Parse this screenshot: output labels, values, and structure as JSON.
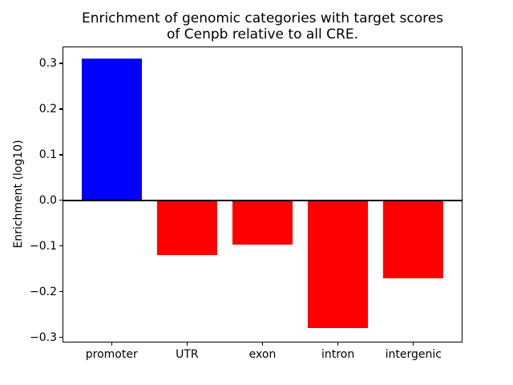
{
  "chart_data": {
    "type": "bar",
    "title": "Enrichment of genomic categories with target scores\nof Cenpb relative to all CRE.",
    "ylabel": "Enrichment (log10)",
    "xlabel": "",
    "categories": [
      "promoter",
      "UTR",
      "exon",
      "intron",
      "intergenic"
    ],
    "values": [
      0.31,
      -0.12,
      -0.097,
      -0.28,
      -0.17
    ],
    "bar_colors": [
      "#0000ff",
      "#ff0000",
      "#ff0000",
      "#ff0000",
      "#ff0000"
    ],
    "positive_color": "#0000ff",
    "negative_color": "#ff0000",
    "ylim": [
      -0.309,
      0.335
    ],
    "xlim": [
      -0.64,
      4.64
    ],
    "bar_width": 0.8,
    "yticks": [
      {
        "v": 0.3,
        "label": "0.3"
      },
      {
        "v": 0.2,
        "label": "0.2"
      },
      {
        "v": 0.1,
        "label": "0.1"
      },
      {
        "v": 0.0,
        "label": "0.0"
      },
      {
        "v": -0.1,
        "label": "−0.1"
      },
      {
        "v": -0.2,
        "label": "−0.2"
      },
      {
        "v": -0.3,
        "label": "−0.3"
      }
    ],
    "zero_line": true,
    "grid": false,
    "legend": "none"
  }
}
